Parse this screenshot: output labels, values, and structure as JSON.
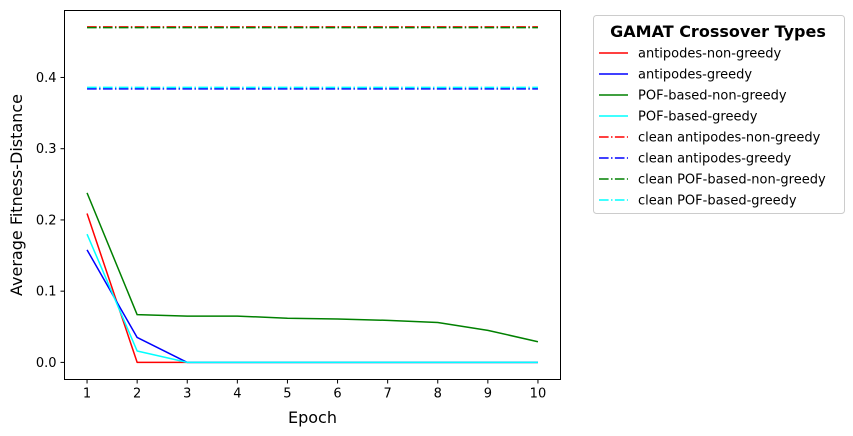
{
  "chart_data": {
    "type": "line",
    "xlabel": "Epoch",
    "ylabel": "Average Fitness-Distance",
    "x": [
      1,
      2,
      3,
      4,
      5,
      6,
      7,
      8,
      9,
      10
    ],
    "xlim": [
      0.55,
      10.45
    ],
    "ylim": [
      -0.024,
      0.494
    ],
    "xticks": [
      1,
      2,
      3,
      4,
      5,
      6,
      7,
      8,
      9,
      10
    ],
    "yticks": [
      0.0,
      0.1,
      0.2,
      0.3,
      0.4
    ],
    "ytick_labels": [
      "0.0",
      "0.1",
      "0.2",
      "0.3",
      "0.4"
    ],
    "grid": false,
    "legend_title": "GAMAT Crossover Types",
    "legend_position": "outside-right-top",
    "series": [
      {
        "name": "antipodes-non-greedy",
        "color": "#ff0000",
        "style": "solid",
        "values": [
          0.209,
          0.0,
          0.0,
          0.0,
          0.0,
          0.0,
          0.0,
          0.0,
          0.0,
          0.0
        ]
      },
      {
        "name": "antipodes-greedy",
        "color": "#0000ff",
        "style": "solid",
        "values": [
          0.158,
          0.035,
          0.0,
          0.0,
          0.0,
          0.0,
          0.0,
          0.0,
          0.0,
          0.0
        ]
      },
      {
        "name": "POF-based-non-greedy",
        "color": "#008000",
        "style": "solid",
        "values": [
          0.238,
          0.067,
          0.065,
          0.065,
          0.062,
          0.061,
          0.059,
          0.056,
          0.045,
          0.029
        ]
      },
      {
        "name": "POF-based-greedy",
        "color": "#00ffff",
        "style": "solid",
        "values": [
          0.18,
          0.016,
          0.0,
          0.0,
          0.0,
          0.0,
          0.0,
          0.0,
          0.0,
          0.0
        ]
      },
      {
        "name": "clean antipodes-non-greedy",
        "color": "#ff0000",
        "style": "dashdot",
        "values": [
          0.471,
          0.471,
          0.471,
          0.471,
          0.471,
          0.471,
          0.471,
          0.471,
          0.471,
          0.471
        ]
      },
      {
        "name": "clean antipodes-greedy",
        "color": "#0000ff",
        "style": "dashdot",
        "values": [
          0.384,
          0.384,
          0.384,
          0.384,
          0.384,
          0.384,
          0.384,
          0.384,
          0.384,
          0.384
        ]
      },
      {
        "name": "clean POF-based-non-greedy",
        "color": "#008000",
        "style": "dashdot",
        "values": [
          0.47,
          0.47,
          0.47,
          0.47,
          0.47,
          0.47,
          0.47,
          0.47,
          0.47,
          0.47
        ]
      },
      {
        "name": "clean POF-based-greedy",
        "color": "#00ffff",
        "style": "dashdot",
        "values": [
          0.386,
          0.386,
          0.386,
          0.386,
          0.386,
          0.386,
          0.386,
          0.386,
          0.386,
          0.386
        ]
      }
    ]
  }
}
